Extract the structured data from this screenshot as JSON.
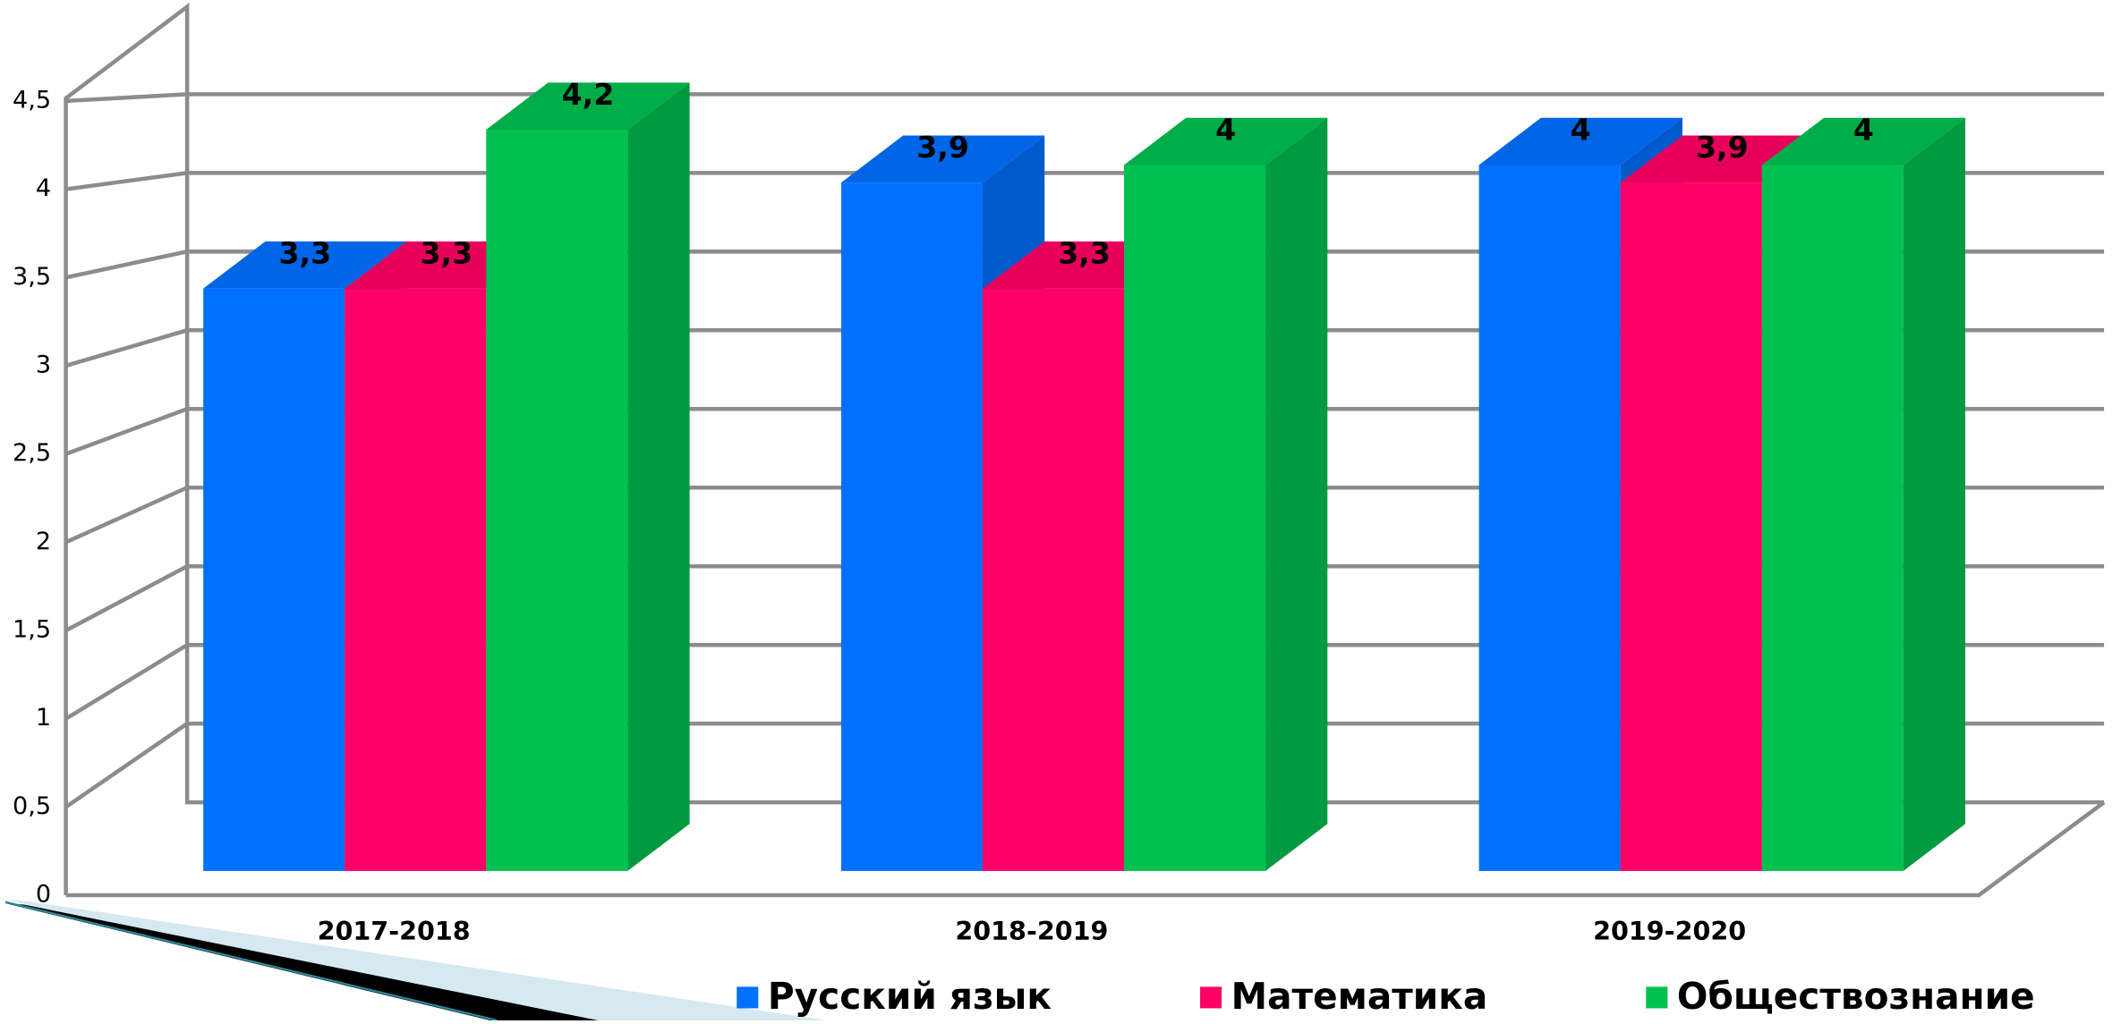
{
  "chart_data": {
    "type": "bar3d",
    "categories": [
      "2017-2018",
      "2018-2019",
      "2019-2020"
    ],
    "series": [
      {
        "name": "Русский язык",
        "color": "#0070ff",
        "values": [
          3.3,
          3.9,
          4
        ],
        "value_labels": [
          "3,3",
          "3,9",
          "4"
        ]
      },
      {
        "name": "Математика",
        "color": "#ff0066",
        "values": [
          3.3,
          3.3,
          3.9
        ],
        "value_labels": [
          "3,3",
          "3,3",
          "3,9"
        ]
      },
      {
        "name": "Обществознание",
        "color": "#00c050",
        "values": [
          4.2,
          4,
          4
        ],
        "value_labels": [
          "4,2",
          "4",
          "4"
        ]
      }
    ],
    "ylim": [
      0,
      4.5
    ],
    "yticks": [
      0,
      {
        "value": 0.5,
        "label": "0,5"
      },
      1,
      {
        "value": 1.5,
        "label": "1,5"
      },
      2,
      {
        "value": 2.5,
        "label": "2,5"
      },
      3,
      {
        "value": 3.5,
        "label": "3,5"
      },
      4,
      {
        "value": 4.5,
        "label": "4,5"
      }
    ],
    "grid": true,
    "legend": "bottom"
  }
}
